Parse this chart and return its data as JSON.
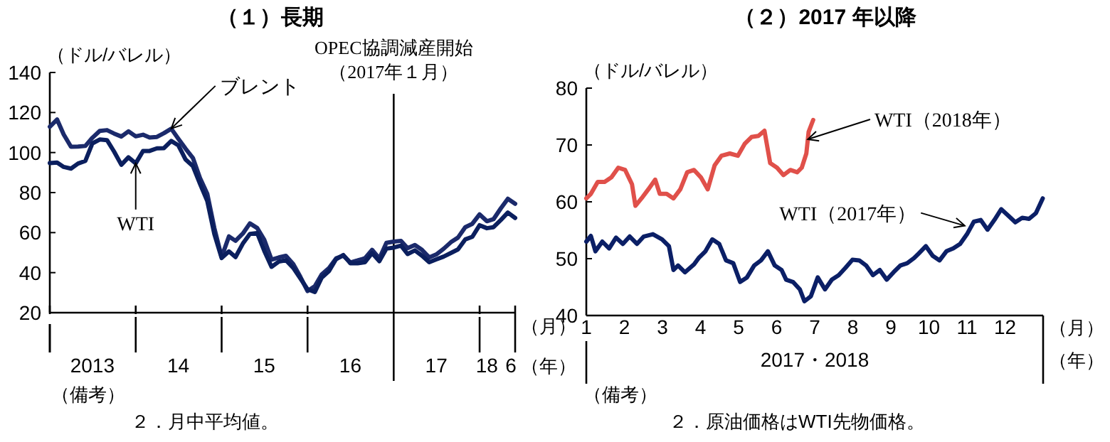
{
  "chart_data": [
    {
      "type": "line",
      "title": "（１）長期",
      "ylabel": "（ドル/バレル）",
      "x": [
        "2013-01",
        "2013-02",
        "2013-03",
        "2013-04",
        "2013-05",
        "2013-06",
        "2013-07",
        "2013-08",
        "2013-09",
        "2013-10",
        "2013-11",
        "2013-12",
        "2014-01",
        "2014-02",
        "2014-03",
        "2014-04",
        "2014-05",
        "2014-06",
        "2014-07",
        "2014-08",
        "2014-09",
        "2014-10",
        "2014-11",
        "2014-12",
        "2015-01",
        "2015-02",
        "2015-03",
        "2015-04",
        "2015-05",
        "2015-06",
        "2015-07",
        "2015-08",
        "2015-09",
        "2015-10",
        "2015-11",
        "2015-12",
        "2016-01",
        "2016-02",
        "2016-03",
        "2016-04",
        "2016-05",
        "2016-06",
        "2016-07",
        "2016-08",
        "2016-09",
        "2016-10",
        "2016-11",
        "2016-12",
        "2017-01",
        "2017-02",
        "2017-03",
        "2017-04",
        "2017-05",
        "2017-06",
        "2017-07",
        "2017-08",
        "2017-09",
        "2017-10",
        "2017-11",
        "2017-12",
        "2018-01",
        "2018-02",
        "2018-03",
        "2018-04",
        "2018-05",
        "2018-06"
      ],
      "xlim": [
        "2013-01",
        "2018-06"
      ],
      "xticks": [
        {
          "value": "2013-01",
          "label": null
        },
        {
          "value": "2013-07",
          "label": "2013"
        },
        {
          "value": "2014-01",
          "label": null
        },
        {
          "value": "2014-07",
          "label": "14"
        },
        {
          "value": "2015-01",
          "label": null
        },
        {
          "value": "2015-07",
          "label": "15"
        },
        {
          "value": "2016-01",
          "label": null
        },
        {
          "value": "2016-07",
          "label": "16"
        },
        {
          "value": "2017-07",
          "label": "17"
        },
        {
          "value": "2018-01",
          "label": null
        },
        {
          "value": "2018-02",
          "label": "18"
        },
        {
          "value": "2018-06",
          "label": "6"
        }
      ],
      "ylim": [
        20,
        140
      ],
      "yticks": [
        20,
        40,
        60,
        80,
        100,
        120,
        140
      ],
      "grid": false,
      "series": [
        {
          "color": "#1b2a6b",
          "values": [
            112.9,
            116.5,
            109,
            102.9,
            103,
            103.3,
            107.4,
            110.8,
            111.2,
            109.5,
            108,
            110.6,
            108.1,
            108.9,
            107.5,
            107.8,
            109.7,
            111.9,
            106.9,
            101.9,
            97.3,
            87.3,
            79.4,
            62.3,
            47.8,
            58.1,
            55.9,
            59.5,
            64.6,
            62.3,
            56.5,
            46.5,
            47.6,
            48.4,
            44.3,
            38,
            30.8,
            33.2,
            39.1,
            42.3,
            47.1,
            48.5,
            45.1,
            46.1,
            47.2,
            51.4,
            47.1,
            54.9,
            55.5,
            55.9,
            52.2,
            53.8,
            51.4,
            47.6,
            49.1,
            51.9,
            55.2,
            57.5,
            62.7,
            64.4,
            69.1,
            65.7,
            66.7,
            72.1,
            76.9,
            74.4
          ]
        },
        {
          "color": "#0b1f5e",
          "values": [
            94.7,
            95,
            92.8,
            92,
            94.5,
            95.8,
            104.6,
            106.5,
            106.2,
            100.5,
            93.9,
            97.6,
            94.6,
            100.8,
            100.8,
            102.1,
            102.2,
            105.8,
            103.6,
            96.5,
            93.2,
            84.4,
            75.8,
            59.3,
            47.3,
            50.6,
            47.8,
            54.5,
            59.3,
            59.8,
            50.9,
            42.9,
            45.5,
            46.2,
            42.4,
            37.2,
            31.7,
            30.3,
            37.5,
            40.8,
            46.7,
            48.8,
            44.7,
            44.7,
            45.2,
            49.8,
            45.7,
            52,
            52.5,
            53.5,
            49.3,
            51.1,
            48.5,
            45.2,
            46.6,
            48,
            49.8,
            51.6,
            56.6,
            57.9,
            63.7,
            62.2,
            62.7,
            66.3,
            70,
            67.3
          ]
        }
      ],
      "ref_lines": [
        {
          "axis": "x",
          "value": "2017-01",
          "label": "OPEC協調減産開始（2017年１月）",
          "color": "#000000"
        }
      ],
      "annotations": [
        {
          "text": "ブレント",
          "x": "2014-06",
          "y": 112
        },
        {
          "text": "WTI",
          "x": "2014-01",
          "y": 94.6
        },
        "（月）",
        "（年）",
        "（備考）",
        "２．月中平均値。"
      ]
    },
    {
      "type": "line",
      "title": "（２）2017 年以降",
      "ylabel": "（ドル/バレル）",
      "xlabel": "2017・2018",
      "xlim": [
        1,
        13
      ],
      "xticks": [
        1,
        2,
        3,
        4,
        5,
        6,
        7,
        8,
        9,
        10,
        11,
        12
      ],
      "ylim": [
        40,
        80
      ],
      "yticks": [
        40,
        50,
        60,
        70,
        80
      ],
      "grid": false,
      "series": [
        {
          "color": "#e0504a",
          "x": [
            1,
            1.12,
            1.3,
            1.48,
            1.66,
            1.84,
            2.02,
            2.2,
            2.29,
            2.45,
            2.63,
            2.81,
            2.93,
            3.11,
            3.29,
            3.47,
            3.65,
            3.83,
            4.01,
            4.19,
            4.37,
            4.55,
            4.77,
            4.98,
            5.16,
            5.34,
            5.52,
            5.68,
            5.83,
            6.01,
            6.18,
            6.36,
            6.54,
            6.66,
            6.78,
            6.84,
            6.96
          ],
          "values": [
            60.6,
            61.4,
            63.5,
            63.5,
            64.3,
            66,
            65.6,
            63.1,
            59.3,
            60.6,
            62.2,
            63.9,
            61.4,
            61.4,
            60.6,
            62.2,
            65.2,
            65.6,
            64.3,
            62.2,
            66.4,
            68.1,
            68.5,
            68.1,
            70.2,
            71.4,
            71.6,
            72.5,
            66.8,
            66,
            64.7,
            65.6,
            65.2,
            66,
            68.5,
            72.3,
            74.4
          ]
        },
        {
          "color": "#0b1f66",
          "x": [
            1,
            1.12,
            1.24,
            1.42,
            1.6,
            1.78,
            1.96,
            2.14,
            2.33,
            2.51,
            2.75,
            2.99,
            3.17,
            3.29,
            3.41,
            3.59,
            3.83,
            3.95,
            4.13,
            4.31,
            4.49,
            4.67,
            4.86,
            5.04,
            5.22,
            5.41,
            5.59,
            5.77,
            5.95,
            6.13,
            6.25,
            6.43,
            6.61,
            6.73,
            6.9,
            7.08,
            7.27,
            7.45,
            7.63,
            7.81,
            7.99,
            8.17,
            8.35,
            8.53,
            8.71,
            8.89,
            9.07,
            9.25,
            9.43,
            9.61,
            9.73,
            9.92,
            10.1,
            10.28,
            10.46,
            10.64,
            10.82,
            11,
            11.18,
            11.36,
            11.54,
            11.72,
            11.9,
            12.08,
            12.27,
            12.45,
            12.63,
            12.81,
            12.99
          ],
          "values": [
            53,
            54,
            51.3,
            53,
            51.8,
            53.7,
            52.6,
            53.9,
            52.6,
            53.9,
            54.3,
            53.4,
            52.2,
            48,
            48.8,
            47.6,
            49,
            50.1,
            51.3,
            53.4,
            52.6,
            49.7,
            49.2,
            45.9,
            46.7,
            48.8,
            49.7,
            51.3,
            48.8,
            48,
            46.3,
            45.9,
            44.6,
            42.5,
            43.4,
            46.7,
            44.6,
            46.3,
            47.1,
            48.4,
            49.8,
            49.7,
            48.8,
            47.1,
            48,
            46.3,
            47.6,
            48.8,
            49.2,
            50.1,
            50.9,
            52.2,
            50.5,
            49.7,
            51.3,
            51.8,
            52.6,
            54.3,
            56.5,
            56.8,
            55.1,
            56.8,
            58.7,
            57.6,
            56.4,
            57.2,
            57,
            58,
            60.6
          ]
        }
      ],
      "annotations": [
        {
          "text": "WTI（2018年）",
          "x": 6.82,
          "y": 71
        },
        {
          "text": "WTI（2017年）",
          "x": 10.94,
          "y": 55.8
        },
        "（月）",
        "（年）",
        "（備考）",
        "２．原油価格はWTI先物価格。"
      ]
    }
  ]
}
